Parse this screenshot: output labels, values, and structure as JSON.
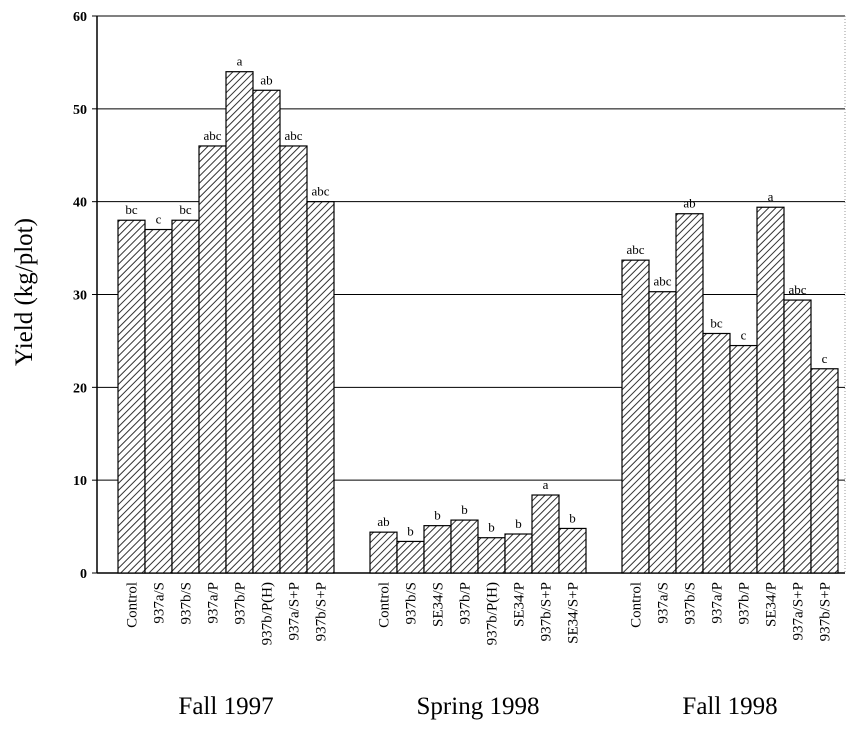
{
  "chart_data": {
    "type": "bar",
    "ylabel": "Yield (kg/plot)",
    "ylim": [
      0,
      60
    ],
    "yticks": [
      0,
      10,
      20,
      30,
      40,
      50,
      60
    ],
    "grid": true,
    "color": "#333333",
    "groups": [
      {
        "name": "Fall 1997",
        "categories": [
          "Control",
          "937a/S",
          "937b/S",
          "937a/P",
          "937b/P",
          "937b/P(H)",
          "937a/S+P",
          "937b/S+P"
        ],
        "values": [
          38,
          37,
          38,
          46,
          54,
          52,
          46,
          40
        ],
        "letters": [
          "bc",
          "c",
          "bc",
          "abc",
          "a",
          "ab",
          "abc",
          "abc"
        ]
      },
      {
        "name": "Spring 1998",
        "categories": [
          "Control",
          "937b/S",
          "SE34/S",
          "937b/P",
          "937b/P(H)",
          "SE34/P",
          "937b/S+P",
          "SE34/S+P"
        ],
        "values": [
          4.4,
          3.4,
          5.1,
          5.7,
          3.8,
          4.2,
          8.4,
          4.8
        ],
        "letters": [
          "ab",
          "b",
          "b",
          "b",
          "b",
          "b",
          "a",
          "b"
        ]
      },
      {
        "name": "Fall 1998",
        "categories": [
          "Control",
          "937a/S",
          "937b/S",
          "937a/P",
          "937b/P",
          "SE34/P",
          "937a/S+P",
          "937b/S+P"
        ],
        "values": [
          33.7,
          30.3,
          38.7,
          25.8,
          24.5,
          39.4,
          29.4,
          22
        ],
        "letters": [
          "abc",
          "abc",
          "ab",
          "bc",
          "c",
          "a",
          "abc",
          "c"
        ]
      }
    ]
  }
}
